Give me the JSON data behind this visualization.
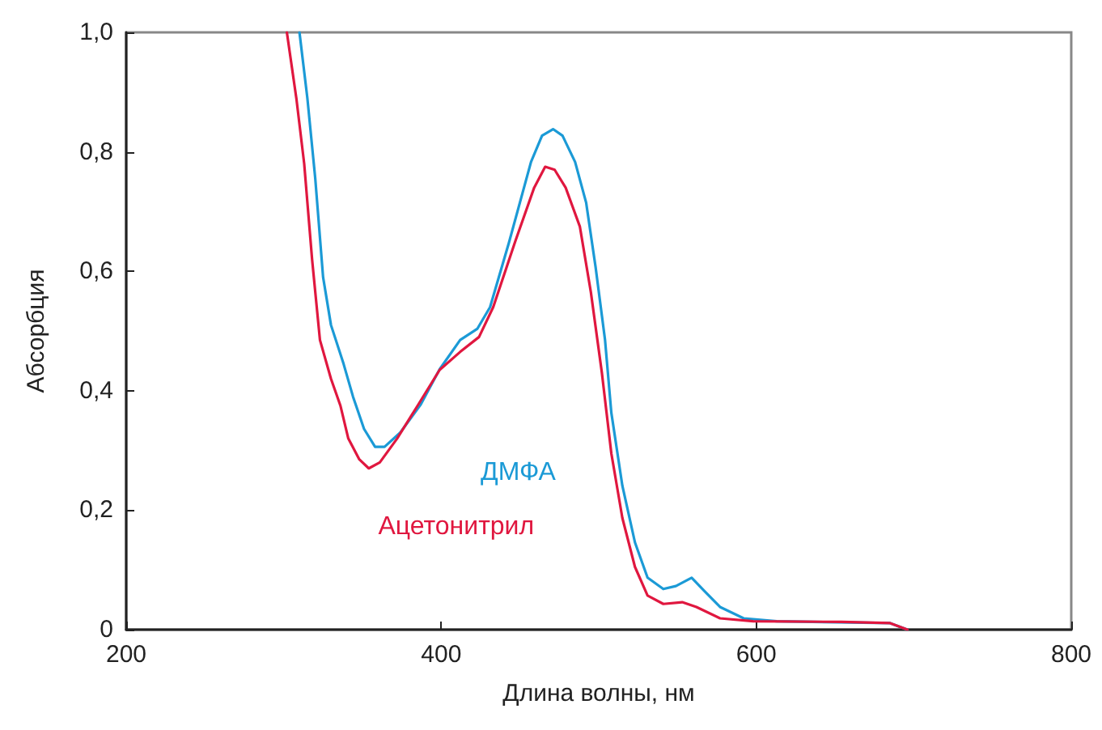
{
  "chart_data": {
    "type": "line",
    "xlabel": "Длина волны, нм",
    "ylabel": "Абсорбция",
    "xlim": [
      200,
      800
    ],
    "xticks": [
      200,
      400,
      600,
      800
    ],
    "ylim": [
      0,
      1
    ],
    "yticks": [
      0,
      {
        "value": 0.2,
        "label": "0,2"
      },
      {
        "value": 0.4,
        "label": "0,4"
      },
      {
        "value": 0.6,
        "label": "0,6"
      },
      {
        "value": 0.8,
        "label": "0,8"
      },
      {
        "value": 1,
        "label": "1,0"
      }
    ],
    "grid": false,
    "legend": false,
    "marker": "none",
    "line_style": "solid",
    "series": [
      {
        "name": "ДМФА",
        "color": "#1b9ad6",
        "x": [
          310,
          315,
          320,
          325,
          330,
          338,
          344,
          351,
          358,
          364,
          374,
          387,
          399,
          412,
          423,
          431,
          443,
          457,
          464,
          471,
          477,
          485,
          492,
          498,
          504,
          508,
          515,
          523,
          531,
          541,
          549,
          559,
          567,
          577,
          592,
          613,
          685,
          696
        ],
        "values": [
          1.0,
          0.89,
          0.756,
          0.59,
          0.51,
          0.445,
          0.39,
          0.336,
          0.306,
          0.306,
          0.33,
          0.377,
          0.436,
          0.485,
          0.504,
          0.54,
          0.648,
          0.783,
          0.827,
          0.838,
          0.827,
          0.783,
          0.715,
          0.607,
          0.485,
          0.363,
          0.241,
          0.146,
          0.087,
          0.068,
          0.073,
          0.087,
          0.065,
          0.038,
          0.019,
          0.014,
          0.011,
          0
        ]
      },
      {
        "name": "Ацетонитрил",
        "color": "#e0173f",
        "x": [
          302,
          308,
          313,
          318,
          323,
          330,
          336,
          341,
          348,
          354,
          361,
          372,
          385,
          399,
          412,
          424,
          433,
          447,
          459,
          466,
          472,
          479,
          488,
          495,
          502,
          508,
          515,
          523,
          531,
          541,
          553,
          562,
          577,
          598,
          654,
          685,
          696
        ],
        "values": [
          1.0,
          0.89,
          0.78,
          0.62,
          0.485,
          0.42,
          0.375,
          0.32,
          0.285,
          0.27,
          0.28,
          0.32,
          0.375,
          0.435,
          0.465,
          0.49,
          0.54,
          0.65,
          0.74,
          0.775,
          0.77,
          0.74,
          0.675,
          0.565,
          0.43,
          0.295,
          0.187,
          0.105,
          0.057,
          0.043,
          0.046,
          0.038,
          0.019,
          0.014,
          0.013,
          0.011,
          0
        ]
      }
    ]
  }
}
